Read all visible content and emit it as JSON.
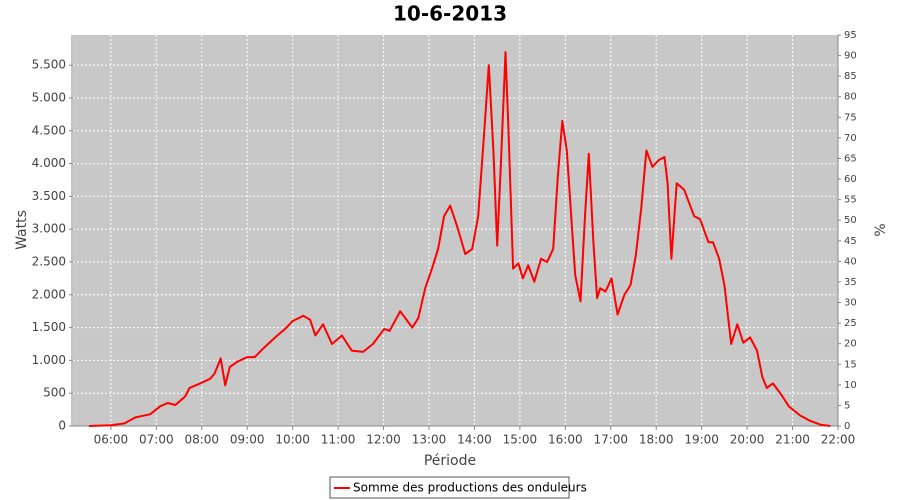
{
  "chart_data": {
    "type": "line",
    "title": "10-6-2013",
    "x_label": "Période",
    "y_label": "Watts",
    "y2_label": "%",
    "xlim": [
      "05:10",
      "22:00"
    ],
    "xticks": [
      "06:00",
      "07:00",
      "08:00",
      "09:00",
      "10:00",
      "11:00",
      "12:00",
      "13:00",
      "14:00",
      "15:00",
      "16:00",
      "17:00",
      "18:00",
      "19:00",
      "20:00",
      "21:00",
      "22:00"
    ],
    "ylim": [
      0,
      5960
    ],
    "yticks": [
      0,
      500,
      {
        "value": 1000,
        "label": "1.000"
      },
      {
        "value": 1500,
        "label": "1.500"
      },
      {
        "value": 2000,
        "label": "2.000"
      },
      {
        "value": 2500,
        "label": "2.500"
      },
      {
        "value": 3000,
        "label": "3.000"
      },
      {
        "value": 3500,
        "label": "3.500"
      },
      {
        "value": 4000,
        "label": "4.000"
      },
      {
        "value": 4500,
        "label": "4.500"
      },
      {
        "value": 5000,
        "label": "5.000"
      },
      {
        "value": 5500,
        "label": "5.500"
      }
    ],
    "y2lim": [
      0,
      95
    ],
    "y2ticks": [
      0,
      5,
      10,
      15,
      20,
      25,
      30,
      35,
      40,
      45,
      50,
      55,
      60,
      65,
      70,
      75,
      80,
      85,
      90,
      95
    ],
    "grid": true,
    "legend": "bottom",
    "x": [
      "05:31",
      "06:00",
      "06:18",
      "06:32",
      "06:52",
      "07:05",
      "07:15",
      "07:25",
      "07:38",
      "07:44",
      "07:58",
      "08:11",
      "08:17",
      "08:25",
      "08:31",
      "08:37",
      "08:47",
      "09:00",
      "09:10",
      "09:21",
      "09:37",
      "09:50",
      "10:00",
      "10:14",
      "10:23",
      "10:30",
      "10:40",
      "10:52",
      "11:05",
      "11:18",
      "11:33",
      "11:46",
      "12:01",
      "12:08",
      "12:22",
      "12:38",
      "12:46",
      "12:55",
      "13:04",
      "13:12",
      "13:20",
      "13:28",
      "13:37",
      "13:48",
      "13:57",
      "14:05",
      "14:13",
      "14:19",
      "14:25",
      "14:30",
      "14:35",
      "14:41",
      "14:45",
      "14:51",
      "14:58",
      "15:04",
      "15:11",
      "15:19",
      "15:28",
      "15:36",
      "15:44",
      "15:50",
      "15:56",
      "16:02",
      "16:09",
      "16:13",
      "16:20",
      "16:26",
      "16:31",
      "16:37",
      "16:42",
      "16:46",
      "16:53",
      "17:01",
      "17:09",
      "17:18",
      "17:26",
      "17:33",
      "17:40",
      "17:47",
      "17:55",
      "18:03",
      "18:11",
      "18:15",
      "18:20",
      "18:27",
      "18:37",
      "18:50",
      "18:58",
      "19:09",
      "19:15",
      "19:23",
      "19:30",
      "19:39",
      "19:47",
      "19:55",
      "20:04",
      "20:13",
      "20:20",
      "20:26",
      "20:34",
      "20:45",
      "20:55",
      "21:10",
      "21:23",
      "21:37",
      "21:50"
    ],
    "series": [
      {
        "name": "Somme des productions des onduleurs",
        "color": "#ff0000",
        "values": [
          0,
          10,
          40,
          130,
          180,
          300,
          350,
          320,
          450,
          580,
          650,
          720,
          800,
          1030,
          620,
          900,
          980,
          1050,
          1050,
          1180,
          1350,
          1480,
          1600,
          1680,
          1620,
          1380,
          1550,
          1250,
          1380,
          1150,
          1130,
          1250,
          1480,
          1450,
          1750,
          1500,
          1650,
          2100,
          2400,
          2700,
          3200,
          3360,
          3050,
          2620,
          2700,
          3200,
          4500,
          5500,
          4200,
          2750,
          4000,
          5700,
          4500,
          2400,
          2480,
          2250,
          2450,
          2200,
          2550,
          2500,
          2700,
          3800,
          4650,
          4200,
          3000,
          2300,
          1900,
          3200,
          4150,
          2800,
          1950,
          2100,
          2050,
          2250,
          1700,
          2000,
          2150,
          2600,
          3300,
          4200,
          3950,
          4050,
          4100,
          3700,
          2550,
          3700,
          3600,
          3200,
          3150,
          2800,
          2800,
          2550,
          2150,
          1250,
          1550,
          1270,
          1350,
          1150,
          750,
          580,
          650,
          480,
          300,
          160,
          80,
          20,
          0
        ]
      }
    ]
  }
}
